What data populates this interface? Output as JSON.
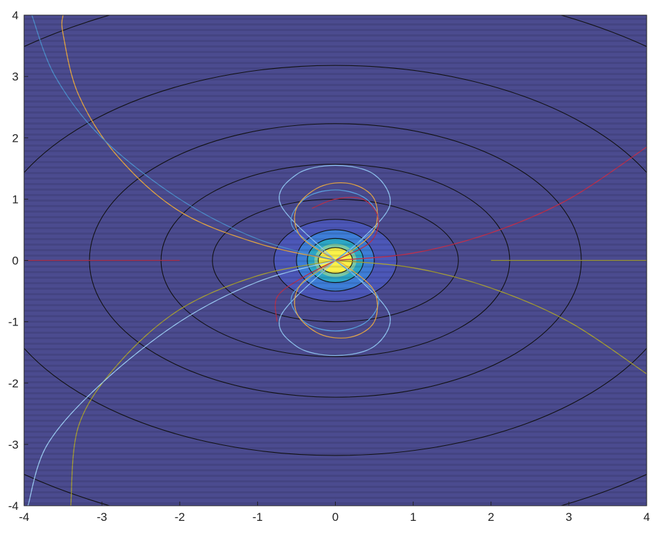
{
  "chart_data": {
    "type": "contour",
    "title": "",
    "xlabel": "",
    "ylabel": "",
    "xlim": [
      -4,
      4
    ],
    "ylim": [
      -4,
      4
    ],
    "x_ticks": [
      "-4",
      "-3",
      "-2",
      "-1",
      "0",
      "1",
      "2",
      "3",
      "4"
    ],
    "y_ticks": [
      "4",
      "3",
      "2",
      "1",
      "0",
      "-1",
      "-2",
      "-3",
      "-4"
    ],
    "grid": false,
    "legend": "none",
    "colormap": "parula",
    "background_color": "#4B4B8F",
    "filled_contours": [
      {
        "semi_axis_x": 0.79,
        "semi_axis_y": 0.67,
        "color": "#4C57B8"
      },
      {
        "semi_axis_x": 0.5,
        "semi_axis_y": 0.5,
        "color": "#3E7ED8"
      },
      {
        "semi_axis_x": 0.36,
        "semi_axis_y": 0.36,
        "color": "#2CA6C6"
      },
      {
        "semi_axis_x": 0.27,
        "semi_axis_y": 0.27,
        "color": "#7CC8A4"
      },
      {
        "semi_axis_x": 0.22,
        "semi_axis_y": 0.21,
        "color": "#FAF14A"
      }
    ],
    "black_contours": [
      {
        "semi_axis_x": 0.22,
        "semi_axis_y": 0.21
      },
      {
        "semi_axis_x": 0.36,
        "semi_axis_y": 0.36
      },
      {
        "semi_axis_x": 0.5,
        "semi_axis_y": 0.5
      },
      {
        "semi_axis_x": 0.79,
        "semi_axis_y": 0.67
      },
      {
        "semi_axis_x": 1.58,
        "semi_axis_y": 1.0
      },
      {
        "semi_axis_x": 2.24,
        "semi_axis_y": 1.57
      },
      {
        "semi_axis_x": 3.16,
        "semi_axis_y": 2.23
      },
      {
        "semi_axis_x": 4.48,
        "semi_axis_y": 3.18
      },
      {
        "semi_axis_x": 6.33,
        "semi_axis_y": 4.5
      }
    ],
    "field_lines": [
      {
        "color": "#8FC3F0",
        "points": [
          [
            0,
            0
          ],
          [
            -0.7,
            0.9
          ],
          [
            -0.5,
            1.4
          ],
          [
            0,
            1.55
          ],
          [
            0.5,
            1.4
          ],
          [
            0.7,
            0.9
          ],
          [
            0.3,
            0.3
          ],
          [
            0,
            0
          ]
        ]
      },
      {
        "color": "#8FC3F0",
        "points": [
          [
            0,
            0
          ],
          [
            -0.7,
            -0.9
          ],
          [
            -0.5,
            -1.4
          ],
          [
            0,
            -1.55
          ],
          [
            0.5,
            -1.4
          ],
          [
            0.7,
            -0.9
          ],
          [
            0.3,
            -0.3
          ],
          [
            0,
            0
          ]
        ]
      },
      {
        "color": "#5CA6E4",
        "points": [
          [
            0,
            0
          ],
          [
            -0.55,
            0.55
          ],
          [
            -0.4,
            1.0
          ],
          [
            0,
            1.15
          ],
          [
            0.4,
            1.0
          ],
          [
            0.55,
            0.6
          ],
          [
            0.2,
            0.2
          ],
          [
            0,
            0
          ]
        ]
      },
      {
        "color": "#5CA6E4",
        "points": [
          [
            0,
            0
          ],
          [
            -0.55,
            -0.55
          ],
          [
            -0.4,
            -1.0
          ],
          [
            0,
            -1.15
          ],
          [
            0.4,
            -1.0
          ],
          [
            0.55,
            -0.6
          ],
          [
            0.2,
            -0.2
          ],
          [
            0,
            0
          ]
        ]
      },
      {
        "color": "#E6A84A",
        "points": [
          [
            0,
            0
          ],
          [
            -0.45,
            0.4
          ],
          [
            -0.5,
            0.85
          ],
          [
            -0.2,
            1.2
          ],
          [
            0.2,
            1.25
          ],
          [
            0.5,
            1.0
          ],
          [
            0.5,
            0.5
          ],
          [
            0.15,
            0.1
          ],
          [
            0,
            0
          ]
        ]
      },
      {
        "color": "#E6A84A",
        "points": [
          [
            0,
            0
          ],
          [
            -0.45,
            -0.4
          ],
          [
            -0.5,
            -0.85
          ],
          [
            -0.2,
            -1.2
          ],
          [
            0.2,
            -1.25
          ],
          [
            0.5,
            -1.0
          ],
          [
            0.5,
            -0.5
          ],
          [
            0.15,
            -0.1
          ],
          [
            0,
            0
          ]
        ]
      },
      {
        "color": "#B8304A",
        "points": [
          [
            0,
            0
          ],
          [
            0.45,
            0.3
          ],
          [
            0.55,
            0.7
          ],
          [
            0.35,
            1.0
          ],
          [
            0,
            1.0
          ],
          [
            -0.3,
            0.85
          ]
        ]
      },
      {
        "color": "#B8304A",
        "points": [
          [
            0,
            0
          ],
          [
            -0.45,
            -0.3
          ],
          [
            -0.75,
            -0.6
          ],
          [
            -0.75,
            -1.0
          ]
        ]
      },
      {
        "color": "#E8A840",
        "points": [
          [
            0,
            0
          ],
          [
            -1,
            0.28
          ],
          [
            -2,
            0.8
          ],
          [
            -2.8,
            1.7
          ],
          [
            -3.3,
            2.7
          ],
          [
            -3.5,
            3.7
          ],
          [
            -3.5,
            4.0
          ]
        ]
      },
      {
        "color": "#4D8FCC",
        "points": [
          [
            0,
            0
          ],
          [
            -1,
            0.35
          ],
          [
            -2,
            1.0
          ],
          [
            -3,
            2.0
          ],
          [
            -3.6,
            3.0
          ],
          [
            -3.9,
            4.0
          ]
        ]
      },
      {
        "color": "#C0304C",
        "points": [
          [
            0,
            0
          ],
          [
            1,
            0.12
          ],
          [
            2,
            0.45
          ],
          [
            3,
            1.0
          ],
          [
            4,
            1.85
          ]
        ]
      },
      {
        "color": "#A8A034",
        "points": [
          [
            0,
            0
          ],
          [
            1,
            -0.12
          ],
          [
            2,
            -0.45
          ],
          [
            3,
            -1.0
          ],
          [
            4,
            -1.85
          ]
        ]
      },
      {
        "color": "#A8A034",
        "points": [
          [
            0,
            0
          ],
          [
            -1,
            -0.25
          ],
          [
            -2,
            -0.8
          ],
          [
            -2.8,
            -1.7
          ],
          [
            -3.3,
            -2.7
          ],
          [
            -3.4,
            -4.0
          ]
        ]
      },
      {
        "color": "#9CCCF4",
        "points": [
          [
            0,
            0
          ],
          [
            -1,
            -0.35
          ],
          [
            -2,
            -1.0
          ],
          [
            -3,
            -2.0
          ],
          [
            -3.7,
            -3.0
          ],
          [
            -3.95,
            -4.0
          ]
        ]
      },
      {
        "color": "#B8304A",
        "points": [
          [
            -4,
            0
          ],
          [
            -2,
            0
          ]
        ]
      },
      {
        "color": "#A8A034",
        "points": [
          [
            2,
            0
          ],
          [
            4,
            0
          ]
        ]
      }
    ]
  }
}
